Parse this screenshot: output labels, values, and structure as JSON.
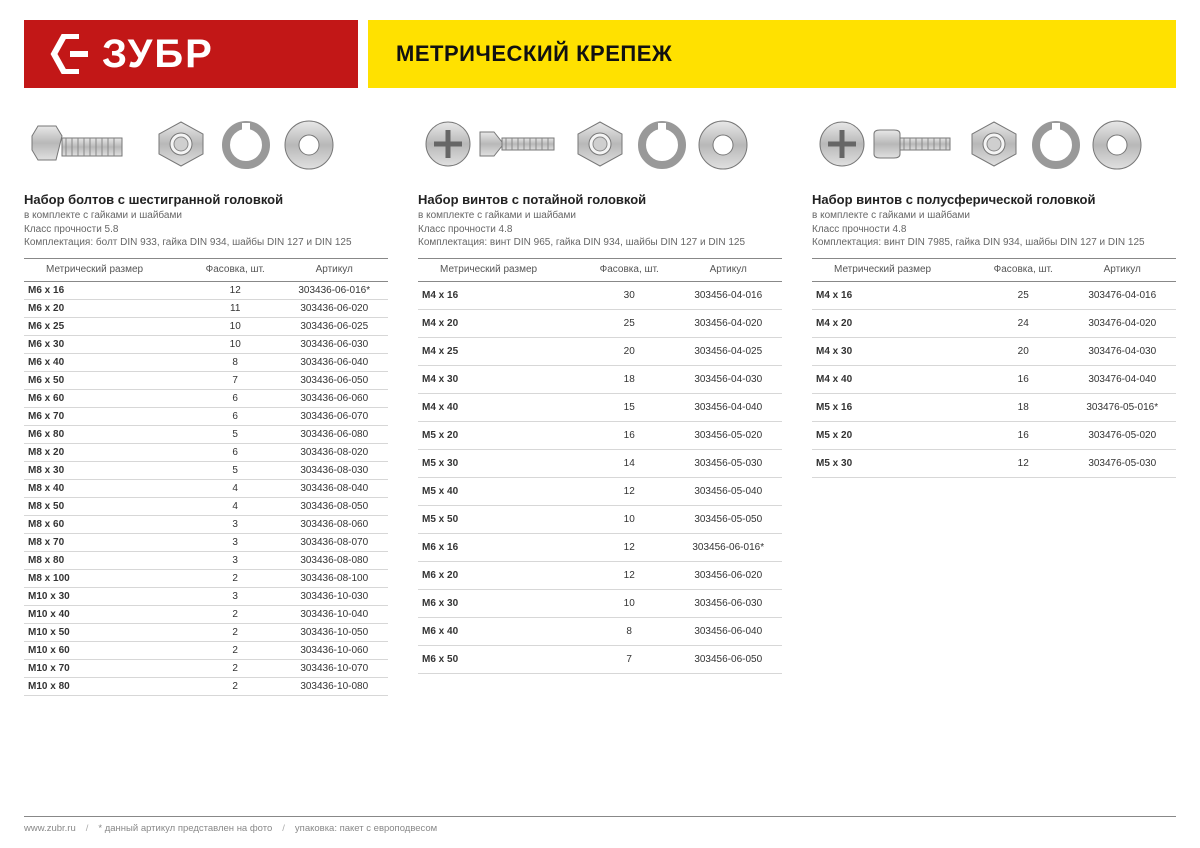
{
  "header": {
    "brand": "ЗУБР",
    "title": "МЕТРИЧЕСКИЙ КРЕПЕЖ",
    "brand_bg": "#c21717",
    "title_bg": "#ffe100"
  },
  "columns": {
    "col1": {
      "title": "Набор болтов с шестигранной головкой",
      "sub1": "в комплекте с гайками и шайбами",
      "sub2": "Класс прочности 5.8",
      "sub3": "Комплектация: болт DIN 933, гайка DIN 934, шайбы DIN 127 и DIN 125",
      "headers": {
        "h1": "Метрический размер",
        "h2": "Фасовка, шт.",
        "h3": "Артикул"
      },
      "rows": [
        {
          "size": "M6 x 16",
          "qty": "12",
          "sku": "303436-06-016*",
          "sep": false
        },
        {
          "size": "M6 x 20",
          "qty": "11",
          "sku": "303436-06-020",
          "sep": false
        },
        {
          "size": "M6 x 25",
          "qty": "10",
          "sku": "303436-06-025",
          "sep": false
        },
        {
          "size": "M6 x 30",
          "qty": "10",
          "sku": "303436-06-030",
          "sep": false
        },
        {
          "size": "M6 x 40",
          "qty": "8",
          "sku": "303436-06-040",
          "sep": false
        },
        {
          "size": "M6 x 50",
          "qty": "7",
          "sku": "303436-06-050",
          "sep": false
        },
        {
          "size": "M6 x 60",
          "qty": "6",
          "sku": "303436-06-060",
          "sep": false
        },
        {
          "size": "M6 x 70",
          "qty": "6",
          "sku": "303436-06-070",
          "sep": false
        },
        {
          "size": "M6 x 80",
          "qty": "5",
          "sku": "303436-06-080",
          "sep": false
        },
        {
          "size": "M8 x 20",
          "qty": "6",
          "sku": "303436-08-020",
          "sep": true
        },
        {
          "size": "M8 x 30",
          "qty": "5",
          "sku": "303436-08-030",
          "sep": false
        },
        {
          "size": "M8 x 40",
          "qty": "4",
          "sku": "303436-08-040",
          "sep": false
        },
        {
          "size": "M8 x 50",
          "qty": "4",
          "sku": "303436-08-050",
          "sep": false
        },
        {
          "size": "M8 x 60",
          "qty": "3",
          "sku": "303436-08-060",
          "sep": false
        },
        {
          "size": "M8 x 70",
          "qty": "3",
          "sku": "303436-08-070",
          "sep": false
        },
        {
          "size": "M8 x 80",
          "qty": "3",
          "sku": "303436-08-080",
          "sep": false
        },
        {
          "size": "M8 x 100",
          "qty": "2",
          "sku": "303436-08-100",
          "sep": false
        },
        {
          "size": "M10 x 30",
          "qty": "3",
          "sku": "303436-10-030",
          "sep": true
        },
        {
          "size": "M10 x 40",
          "qty": "2",
          "sku": "303436-10-040",
          "sep": false
        },
        {
          "size": "M10 x 50",
          "qty": "2",
          "sku": "303436-10-050",
          "sep": false
        },
        {
          "size": "M10 x 60",
          "qty": "2",
          "sku": "303436-10-060",
          "sep": false
        },
        {
          "size": "M10 x 70",
          "qty": "2",
          "sku": "303436-10-070",
          "sep": false
        },
        {
          "size": "M10 x 80",
          "qty": "2",
          "sku": "303436-10-080",
          "sep": false
        }
      ]
    },
    "col2": {
      "title": "Набор винтов с потайной головкой",
      "sub1": "в комплекте с гайками и шайбами",
      "sub2": "Класс прочности 4.8",
      "sub3": "Комплектация: винт DIN 965, гайка DIN 934, шайбы DIN 127 и DIN 125",
      "headers": {
        "h1": "Метрический размер",
        "h2": "Фасовка, шт.",
        "h3": "Артикул"
      },
      "rows": [
        {
          "size": "M4 x 16",
          "qty": "30",
          "sku": "303456-04-016",
          "sep": false
        },
        {
          "size": "M4 x 20",
          "qty": "25",
          "sku": "303456-04-020",
          "sep": false
        },
        {
          "size": "M4 x 25",
          "qty": "20",
          "sku": "303456-04-025",
          "sep": false
        },
        {
          "size": "M4 x 30",
          "qty": "18",
          "sku": "303456-04-030",
          "sep": false
        },
        {
          "size": "M4 x 40",
          "qty": "15",
          "sku": "303456-04-040",
          "sep": false
        },
        {
          "size": "M5 x 20",
          "qty": "16",
          "sku": "303456-05-020",
          "sep": true
        },
        {
          "size": "M5 x 30",
          "qty": "14",
          "sku": "303456-05-030",
          "sep": false
        },
        {
          "size": "M5 x 40",
          "qty": "12",
          "sku": "303456-05-040",
          "sep": false
        },
        {
          "size": "M5 x 50",
          "qty": "10",
          "sku": "303456-05-050",
          "sep": false
        },
        {
          "size": "M6 x 16",
          "qty": "12",
          "sku": "303456-06-016*",
          "sep": true
        },
        {
          "size": "M6 x 20",
          "qty": "12",
          "sku": "303456-06-020",
          "sep": false
        },
        {
          "size": "M6 x 30",
          "qty": "10",
          "sku": "303456-06-030",
          "sep": false
        },
        {
          "size": "M6 x 40",
          "qty": "8",
          "sku": "303456-06-040",
          "sep": false
        },
        {
          "size": "M6 x 50",
          "qty": "7",
          "sku": "303456-06-050",
          "sep": false
        }
      ]
    },
    "col3": {
      "title": "Набор винтов с полусферической головкой",
      "sub1": "в комплекте с гайками и шайбами",
      "sub2": "Класс прочности 4.8",
      "sub3": "Комплектация: винт DIN 7985, гайка DIN 934, шайбы DIN 127 и DIN 125",
      "headers": {
        "h1": "Метрический размер",
        "h2": "Фасовка, шт.",
        "h3": "Артикул"
      },
      "rows": [
        {
          "size": "M4 x 16",
          "qty": "25",
          "sku": "303476-04-016",
          "sep": false
        },
        {
          "size": "M4 x 20",
          "qty": "24",
          "sku": "303476-04-020",
          "sep": false
        },
        {
          "size": "M4 x 30",
          "qty": "20",
          "sku": "303476-04-030",
          "sep": false
        },
        {
          "size": "M4 x 40",
          "qty": "16",
          "sku": "303476-04-040",
          "sep": false
        },
        {
          "size": "M5 x 16",
          "qty": "18",
          "sku": "303476-05-016*",
          "sep": true
        },
        {
          "size": "M5 x 20",
          "qty": "16",
          "sku": "303476-05-020",
          "sep": false
        },
        {
          "size": "M5 x 30",
          "qty": "12",
          "sku": "303476-05-030",
          "sep": false
        }
      ]
    }
  },
  "footer": {
    "url": "www.zubr.ru",
    "note1": "* данный артикул представлен на фото",
    "note2": "упаковка: пакет с европодвесом"
  },
  "colors": {
    "text": "#333333",
    "muted": "#888888",
    "rule": "#d7d7d7",
    "rule_strong": "#888888"
  }
}
